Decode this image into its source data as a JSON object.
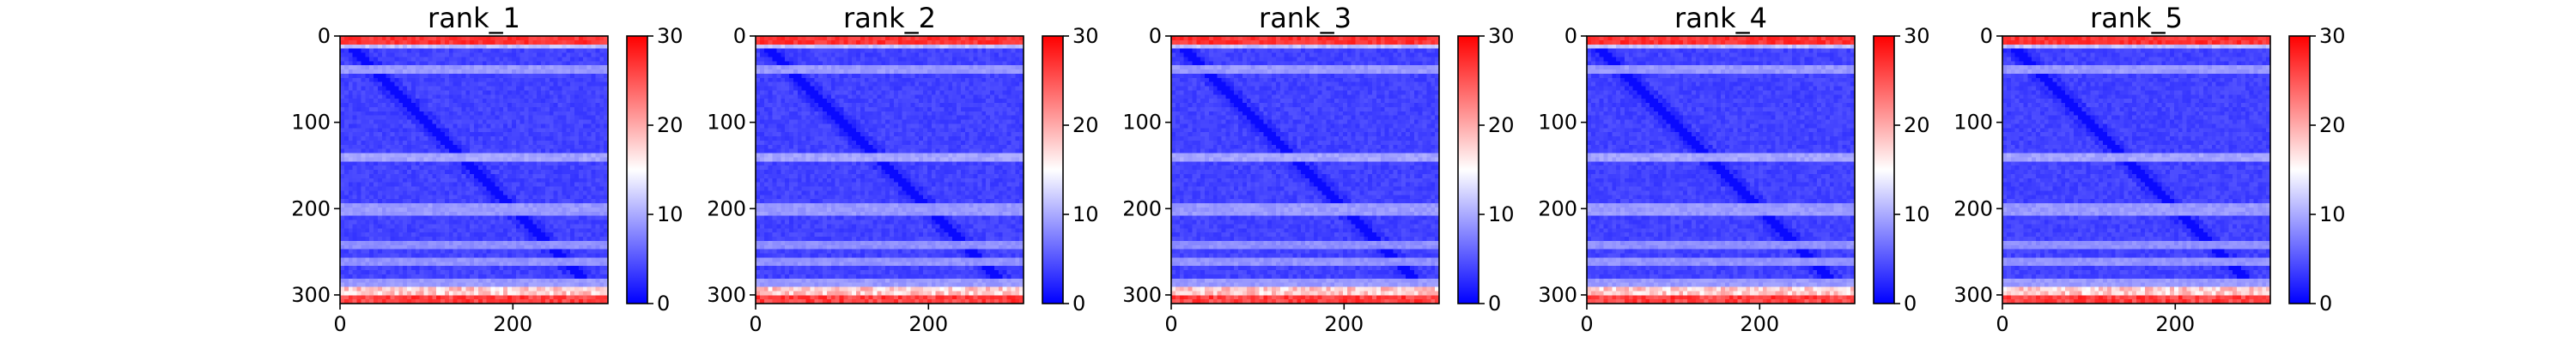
{
  "chart_data": [
    {
      "type": "heatmap",
      "title": "rank_1",
      "matrix_size": 310,
      "xticks": [
        0,
        200
      ],
      "yticks": [
        0,
        100,
        200,
        300
      ],
      "colorbar": {
        "ticks": [
          0,
          10,
          20,
          30
        ],
        "range": [
          0,
          30
        ],
        "colormap": "bwr"
      },
      "band_rows": [
        8,
        35,
        138,
        198,
        240,
        258,
        283,
        302
      ],
      "band_strengths": [
        0.65,
        0.45,
        0.5,
        0.45,
        0.4,
        0.42,
        0.45,
        0.8
      ]
    },
    {
      "type": "heatmap",
      "title": "rank_2",
      "matrix_size": 310,
      "xticks": [
        0,
        200
      ],
      "yticks": [
        0,
        100,
        200,
        300
      ],
      "colorbar": {
        "ticks": [
          0,
          10,
          20,
          30
        ],
        "range": [
          0,
          30
        ],
        "colormap": "bwr"
      },
      "band_rows": [
        8,
        35,
        138,
        198,
        240,
        258,
        283,
        302
      ],
      "band_strengths": [
        0.65,
        0.45,
        0.5,
        0.45,
        0.4,
        0.42,
        0.45,
        0.8
      ]
    },
    {
      "type": "heatmap",
      "title": "rank_3",
      "matrix_size": 310,
      "xticks": [
        0,
        200
      ],
      "yticks": [
        0,
        100,
        200,
        300
      ],
      "colorbar": {
        "ticks": [
          0,
          10,
          20,
          30
        ],
        "range": [
          0,
          30
        ],
        "colormap": "bwr"
      },
      "band_rows": [
        8,
        35,
        138,
        198,
        240,
        258,
        283,
        302
      ],
      "band_strengths": [
        0.65,
        0.45,
        0.5,
        0.45,
        0.4,
        0.42,
        0.45,
        0.8
      ]
    },
    {
      "type": "heatmap",
      "title": "rank_4",
      "matrix_size": 310,
      "xticks": [
        0,
        200
      ],
      "yticks": [
        0,
        100,
        200,
        300
      ],
      "colorbar": {
        "ticks": [
          0,
          10,
          20,
          30
        ],
        "range": [
          0,
          30
        ],
        "colormap": "bwr"
      },
      "band_rows": [
        8,
        35,
        138,
        198,
        240,
        258,
        283,
        302
      ],
      "band_strengths": [
        0.65,
        0.45,
        0.5,
        0.45,
        0.4,
        0.42,
        0.45,
        0.8
      ]
    },
    {
      "type": "heatmap",
      "title": "rank_5",
      "matrix_size": 310,
      "xticks": [
        0,
        200
      ],
      "yticks": [
        0,
        100,
        200,
        300
      ],
      "colorbar": {
        "ticks": [
          0,
          10,
          20,
          30
        ],
        "range": [
          0,
          30
        ],
        "colormap": "bwr"
      },
      "band_rows": [
        8,
        35,
        138,
        198,
        240,
        258,
        283,
        302
      ],
      "band_strengths": [
        0.65,
        0.45,
        0.5,
        0.45,
        0.4,
        0.42,
        0.45,
        0.8
      ]
    }
  ]
}
